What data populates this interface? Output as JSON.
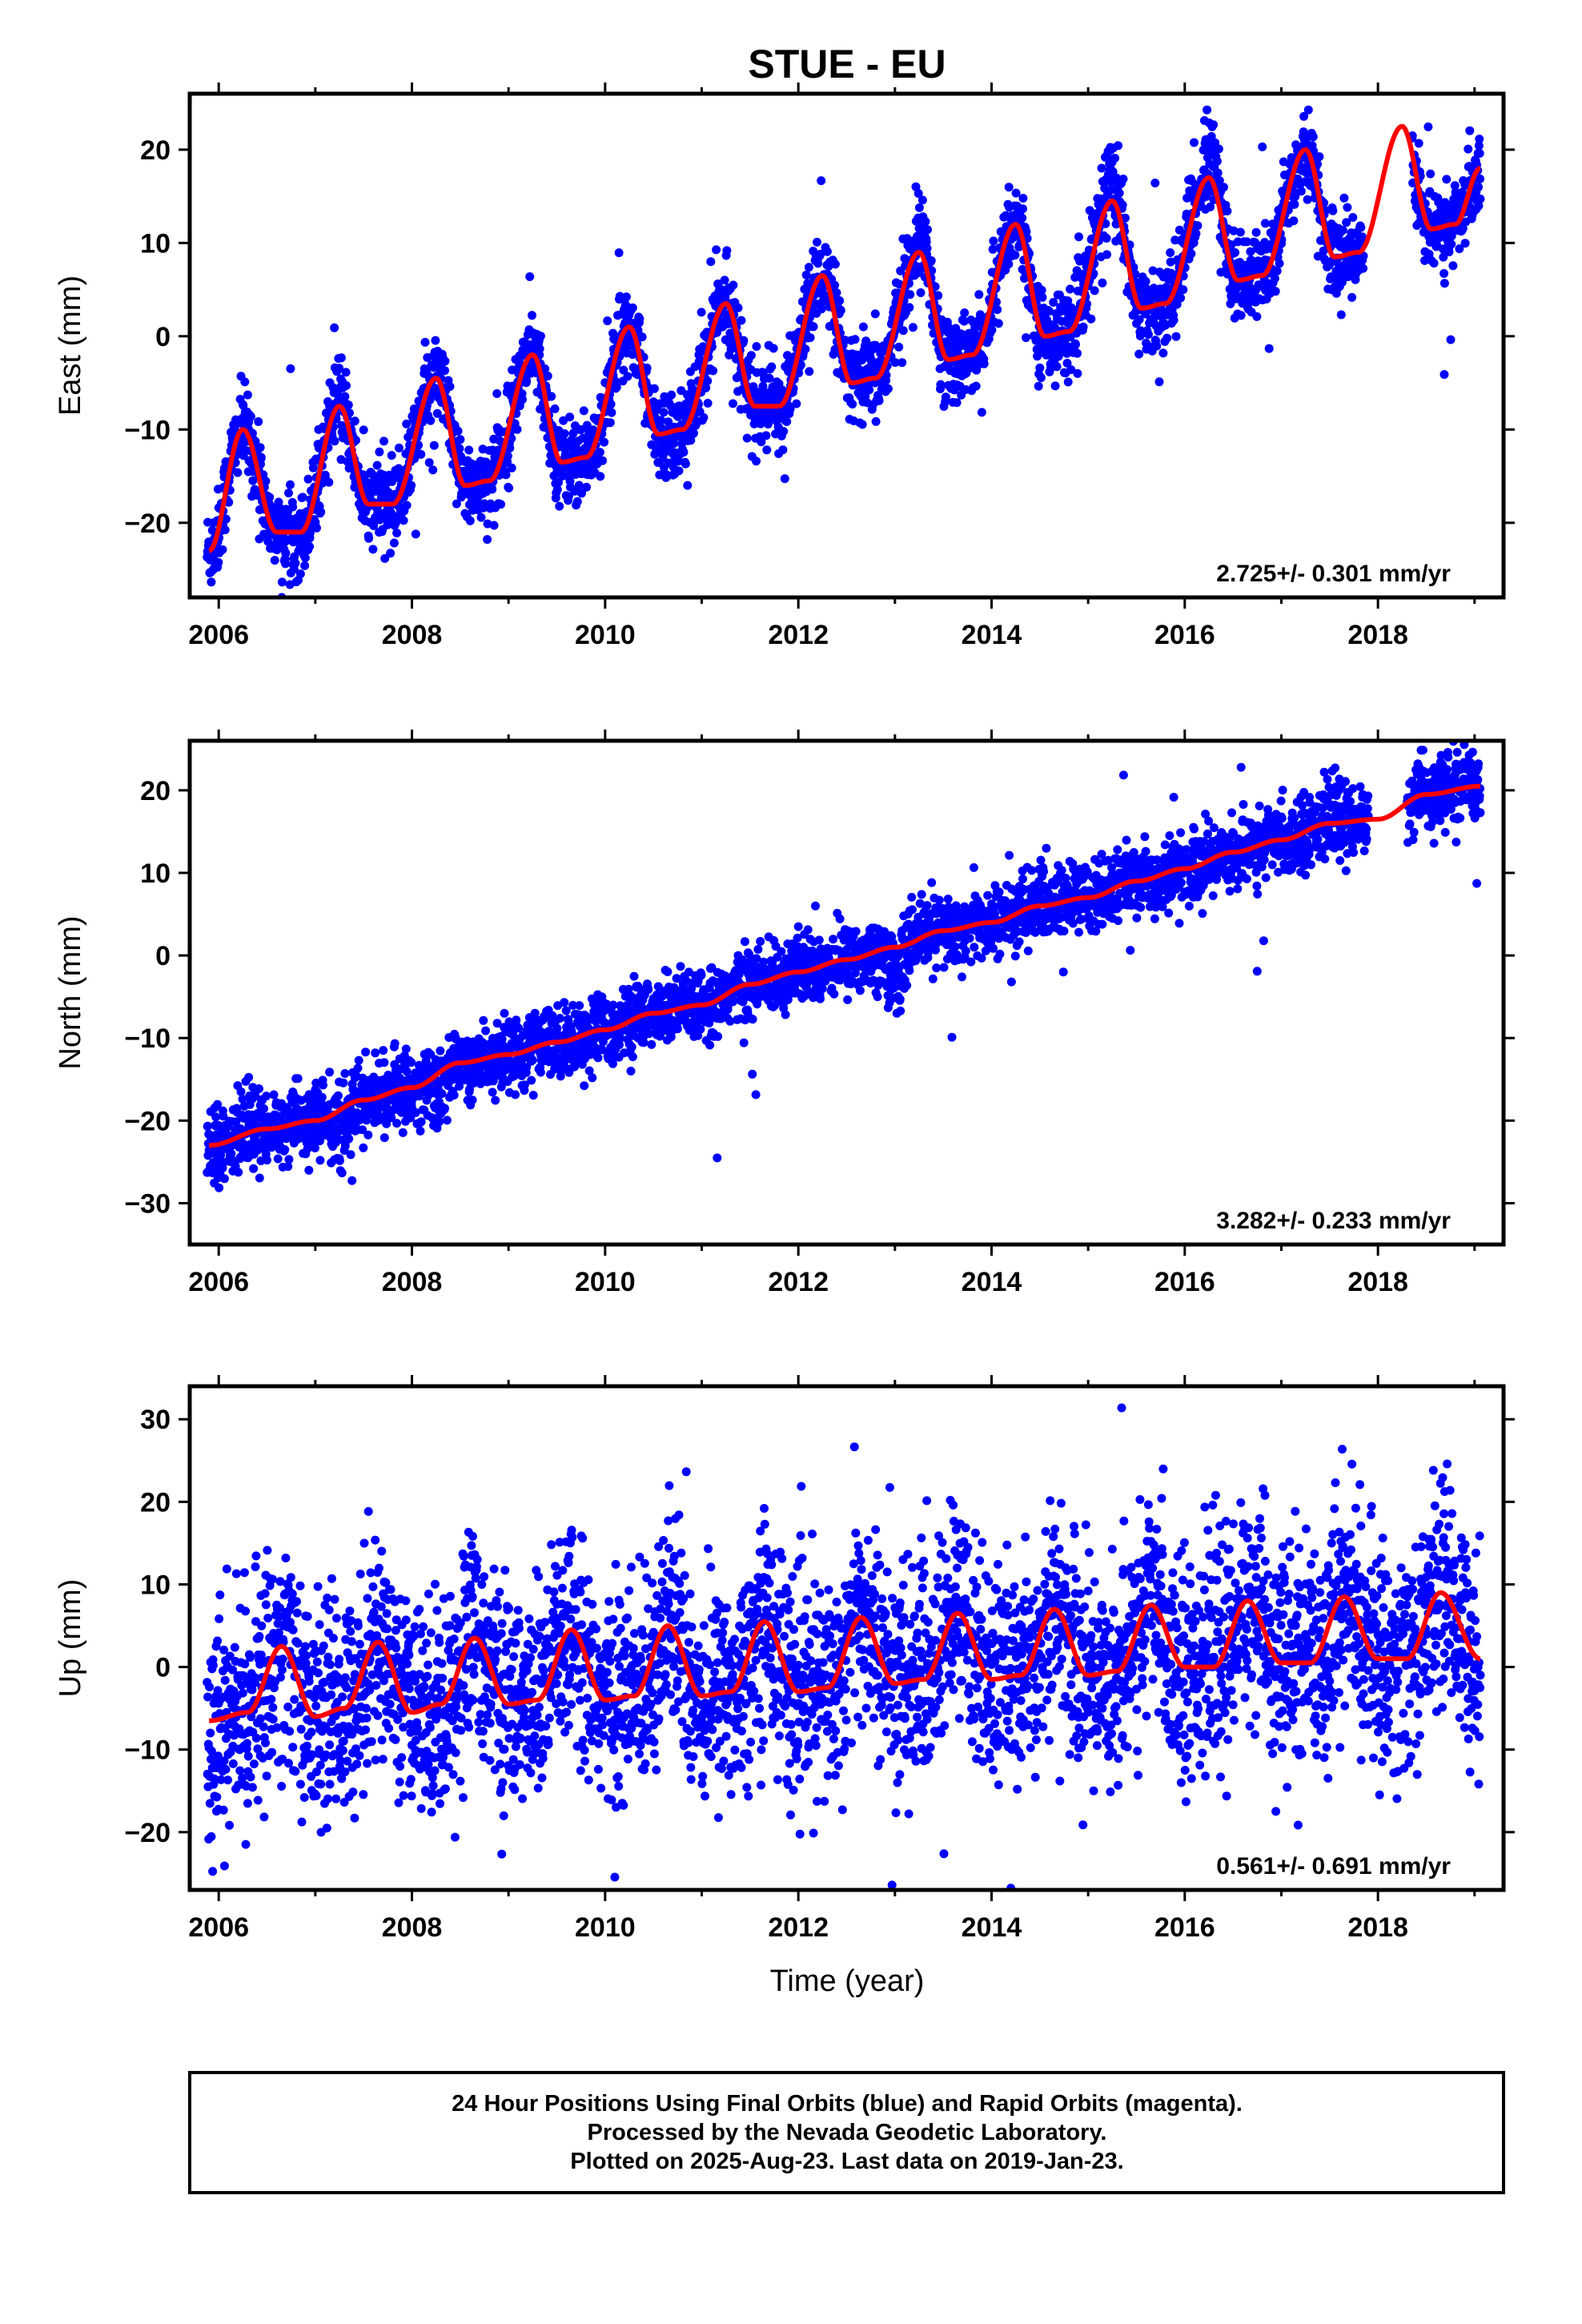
{
  "title": "STUE - EU",
  "xlabel": "Time (year)",
  "colors": {
    "final_points": "#0000ff",
    "model_fit": "#ff0000",
    "frame": "#000000"
  },
  "chart_data": [
    {
      "type": "scatter",
      "name": "east",
      "ylabel": "East (mm)",
      "xlim": [
        2005.7,
        2019.3
      ],
      "ylim": [
        -28,
        26
      ],
      "x_ticks": [
        2006,
        2008,
        2010,
        2012,
        2014,
        2016,
        2018
      ],
      "y_ticks": [
        -20,
        -10,
        0,
        10,
        20
      ],
      "rate_text": "2.725+/- 0.301 mm/yr",
      "data_span": [
        2005.88,
        2019.06
      ],
      "fit": {
        "x": [
          2005.9,
          2006.25,
          2006.6,
          2006.85,
          2007.25,
          2007.55,
          2007.8,
          2008.25,
          2008.55,
          2008.8,
          2009.25,
          2009.55,
          2009.8,
          2010.25,
          2010.55,
          2010.8,
          2011.25,
          2011.55,
          2011.8,
          2012.25,
          2012.55,
          2012.8,
          2013.25,
          2013.55,
          2013.8,
          2014.25,
          2014.55,
          2014.8,
          2015.25,
          2015.55,
          2015.8,
          2016.25,
          2016.55,
          2016.8,
          2017.25,
          2017.55,
          2017.8,
          2018.25,
          2018.55,
          2018.8,
          2019.06
        ],
        "y": [
          -23,
          -10,
          -21,
          -21,
          -7.5,
          -18,
          -18,
          -4.5,
          -16,
          -15.5,
          -2,
          -13.5,
          -13,
          1,
          -10.5,
          -10,
          3.5,
          -7.5,
          -7.5,
          6.5,
          -5,
          -4.5,
          9,
          -2.5,
          -2,
          12,
          0,
          0.5,
          14.5,
          3,
          3.5,
          17,
          6,
          6.5,
          20,
          8.5,
          9,
          22.5,
          11.5,
          12,
          18
        ]
      },
      "amplitude": {
        "seasonal": 6,
        "noise": 2.2,
        "spike_years": [
          2013.3,
          2015.25,
          2016.3
        ]
      }
    },
    {
      "type": "scatter",
      "name": "north",
      "ylabel": "North (mm)",
      "xlim": [
        2005.7,
        2019.3
      ],
      "ylim": [
        -35,
        26
      ],
      "x_ticks": [
        2006,
        2008,
        2010,
        2012,
        2014,
        2016,
        2018
      ],
      "y_ticks": [
        -30,
        -20,
        -10,
        0,
        10,
        20
      ],
      "rate_text": "3.282+/- 0.233 mm/yr",
      "data_span": [
        2005.88,
        2019.06
      ],
      "fit": {
        "x": [
          2005.9,
          2006.5,
          2007.0,
          2007.5,
          2008.0,
          2008.5,
          2009.0,
          2009.5,
          2010.0,
          2010.5,
          2011.0,
          2011.5,
          2012.0,
          2012.5,
          2013.0,
          2013.5,
          2014.0,
          2014.5,
          2015.0,
          2015.5,
          2016.0,
          2016.5,
          2017.0,
          2017.5,
          2018.0,
          2018.5,
          2019.06
        ],
        "y": [
          -23,
          -21,
          -20,
          -17.5,
          -16,
          -13,
          -12,
          -10.5,
          -9,
          -7,
          -6,
          -3.5,
          -2,
          -0.5,
          1,
          3,
          4,
          6,
          7,
          9,
          10.5,
          12.5,
          14,
          16,
          16.5,
          19.5,
          20.5
        ]
      },
      "amplitude": {
        "seasonal": 1,
        "noise": 2.1,
        "spike_years": [
          2007.25,
          2008.3,
          2013.0
        ]
      }
    },
    {
      "type": "scatter",
      "name": "up",
      "ylabel": "Up (mm)",
      "xlim": [
        2005.7,
        2019.3
      ],
      "ylim": [
        -27,
        34
      ],
      "x_ticks": [
        2006,
        2008,
        2010,
        2012,
        2014,
        2016,
        2018
      ],
      "y_ticks": [
        -20,
        -10,
        0,
        10,
        20,
        30
      ],
      "rate_text": "0.561+/- 0.691 mm/yr",
      "data_span": [
        2005.88,
        2019.06
      ],
      "fit": {
        "x": [
          2005.9,
          2006.3,
          2006.65,
          2007.0,
          2007.3,
          2007.65,
          2008.0,
          2008.3,
          2008.65,
          2009.0,
          2009.3,
          2009.65,
          2010.0,
          2010.3,
          2010.65,
          2011.0,
          2011.3,
          2011.65,
          2012.0,
          2012.3,
          2012.65,
          2013.0,
          2013.3,
          2013.65,
          2014.0,
          2014.3,
          2014.65,
          2015.0,
          2015.3,
          2015.65,
          2016.0,
          2016.3,
          2016.65,
          2017.0,
          2017.3,
          2017.65,
          2018.0,
          2018.3,
          2018.65,
          2019.06
        ],
        "y": [
          -6.5,
          -5.5,
          2.5,
          -6,
          -5,
          3,
          -5.5,
          -4.5,
          3.5,
          -4.5,
          -4,
          4.5,
          -4,
          -3.5,
          5,
          -3.5,
          -3,
          5.5,
          -3,
          -2.5,
          6,
          -2,
          -1.5,
          6.5,
          -1.5,
          -1,
          7,
          -1,
          -0.5,
          7.5,
          0,
          0,
          8,
          0.5,
          0.5,
          8.5,
          1,
          1,
          9,
          1
        ]
      },
      "amplitude": {
        "seasonal": 4,
        "noise": 6.5,
        "spike_years": []
      }
    }
  ],
  "footer": {
    "line1": "24 Hour Positions Using Final Orbits (blue) and Rapid Orbits (magenta).",
    "line2": "Processed by the Nevada Geodetic Laboratory.",
    "line3": "Plotted on 2025-Aug-23. Last data on 2019-Jan-23."
  }
}
